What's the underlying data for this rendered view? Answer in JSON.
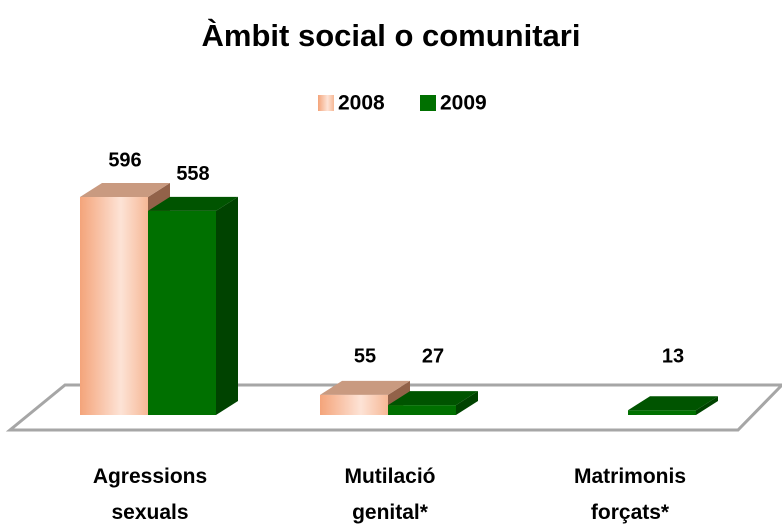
{
  "chart_data": {
    "type": "bar3d",
    "title": "Àmbit social o comunitari",
    "categories": [
      [
        "Agressions",
        "sexuals"
      ],
      [
        "Mutilació",
        "genital*"
      ],
      [
        "Matrimonis",
        "forçats*"
      ]
    ],
    "series": [
      {
        "name": "2008",
        "color": "#f4a47a",
        "values": [
          596,
          55,
          null
        ]
      },
      {
        "name": "2009",
        "color": "#007000",
        "values": [
          558,
          27,
          13
        ]
      }
    ],
    "legend": "top"
  }
}
